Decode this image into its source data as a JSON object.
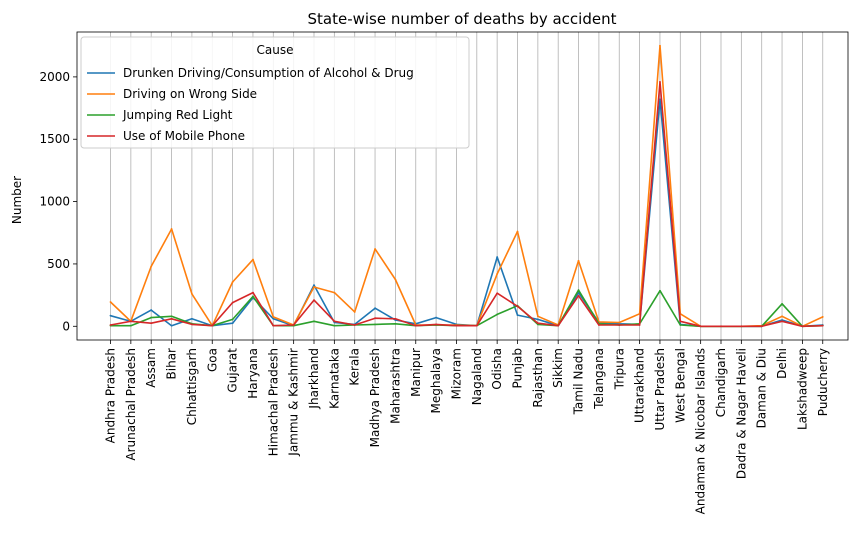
{
  "chart_data": {
    "type": "line",
    "title": "State-wise number of deaths by accident",
    "xlabel": "",
    "ylabel": "Number",
    "ylim": [
      -110,
      2360
    ],
    "yticks": [
      0,
      500,
      1000,
      1500,
      2000
    ],
    "grid": "x-vertical",
    "legend": {
      "title": "Cause",
      "placement": "top-left"
    },
    "categories": [
      "Andhra Pradesh",
      "Arunachal Pradesh",
      "Assam",
      "Bihar",
      "Chhattisgarh",
      "Goa",
      "Gujarat",
      "Haryana",
      "Himachal Pradesh",
      "Jammu & Kashmir",
      "Jharkhand",
      "Karnataka",
      "Kerala",
      "Madhya Pradesh",
      "Maharashtra",
      "Manipur",
      "Meghalaya",
      "Mizoram",
      "Nagaland",
      "Odisha",
      "Punjab",
      "Rajasthan",
      "Sikkim",
      "Tamil Nadu",
      "Telangana",
      "Tripura",
      "Uttarakhand",
      "Uttar Pradesh",
      "West Bengal",
      "Andaman & Nicobar Islands",
      "Chandigarh",
      "Dadra & Nagar Haveli",
      "Daman & Diu",
      "Delhi",
      "Lakshadweep",
      "Puducherry"
    ],
    "series": [
      {
        "name": "Drunken Driving/Consumption of Alcohol & Drug",
        "color": "#1f77b4",
        "values": [
          85,
          40,
          130,
          5,
          60,
          5,
          25,
          230,
          60,
          5,
          330,
          30,
          15,
          145,
          50,
          20,
          70,
          15,
          5,
          555,
          90,
          55,
          5,
          270,
          30,
          20,
          15,
          1820,
          15,
          0,
          0,
          0,
          0,
          50,
          0,
          10
        ]
      },
      {
        "name": "Driving on Wrong Side",
        "color": "#ff7f0e",
        "values": [
          195,
          40,
          480,
          780,
          260,
          5,
          355,
          535,
          75,
          10,
          315,
          270,
          115,
          620,
          375,
          10,
          10,
          10,
          5,
          420,
          760,
          80,
          10,
          525,
          35,
          30,
          100,
          2250,
          100,
          0,
          0,
          0,
          5,
          80,
          0,
          75
        ]
      },
      {
        "name": "Jumping Red Light",
        "color": "#2ca02c",
        "values": [
          5,
          5,
          70,
          80,
          20,
          5,
          55,
          240,
          5,
          5,
          40,
          5,
          10,
          15,
          20,
          5,
          10,
          5,
          5,
          95,
          165,
          15,
          5,
          290,
          20,
          10,
          20,
          285,
          10,
          0,
          0,
          0,
          0,
          180,
          0,
          5
        ]
      },
      {
        "name": "Use of Mobile Phone",
        "color": "#d62728",
        "values": [
          10,
          40,
          25,
          60,
          15,
          5,
          190,
          270,
          5,
          10,
          210,
          40,
          10,
          65,
          60,
          5,
          15,
          5,
          5,
          265,
          160,
          25,
          5,
          245,
          10,
          10,
          10,
          1960,
          40,
          0,
          0,
          0,
          0,
          40,
          0,
          5
        ]
      }
    ]
  }
}
